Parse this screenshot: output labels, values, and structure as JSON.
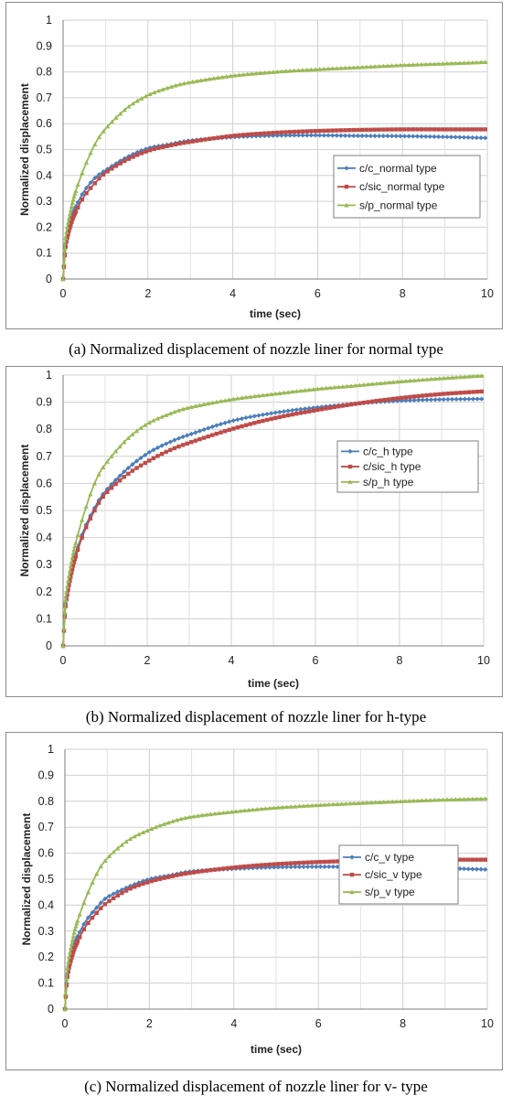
{
  "chart_data": [
    {
      "type": "line",
      "caption": "(a) Normalized displacement of nozzle liner for normal type",
      "xlabel": "time (sec)",
      "ylabel": "Normalized displacement",
      "xlim": [
        0,
        10
      ],
      "ylim": [
        0,
        1
      ],
      "xticks": [
        "0",
        "2",
        "4",
        "6",
        "8",
        "10"
      ],
      "yticks": [
        "0",
        "0.1",
        "0.2",
        "0.3",
        "0.4",
        "0.5",
        "0.6",
        "0.7",
        "0.8",
        "0.9",
        "1"
      ],
      "grid": true,
      "legend_position": "right",
      "series": [
        {
          "name": "c/c_normal type",
          "color": "#4a7ebb",
          "marker": "diamond",
          "x": [
            0,
            0.05,
            0.1,
            0.2,
            0.3,
            0.5,
            0.75,
            1,
            1.5,
            2,
            2.5,
            3,
            4,
            5,
            6,
            7,
            8,
            9,
            10
          ],
          "y": [
            0,
            0.12,
            0.18,
            0.24,
            0.28,
            0.34,
            0.39,
            0.42,
            0.47,
            0.505,
            0.52,
            0.535,
            0.548,
            0.554,
            0.555,
            0.553,
            0.552,
            0.549,
            0.545
          ]
        },
        {
          "name": "c/sic_normal type",
          "color": "#be4b48",
          "marker": "square",
          "x": [
            0,
            0.05,
            0.1,
            0.2,
            0.3,
            0.5,
            0.75,
            1,
            1.5,
            2,
            2.5,
            3,
            4,
            5,
            6,
            7,
            8,
            9,
            10
          ],
          "y": [
            0,
            0.11,
            0.16,
            0.22,
            0.26,
            0.32,
            0.37,
            0.41,
            0.46,
            0.495,
            0.515,
            0.53,
            0.553,
            0.565,
            0.572,
            0.576,
            0.578,
            0.578,
            0.578
          ]
        },
        {
          "name": "s/p_normal type",
          "color": "#98b954",
          "marker": "triangle",
          "x": [
            0,
            0.05,
            0.1,
            0.2,
            0.3,
            0.5,
            0.75,
            1,
            1.5,
            2,
            2.5,
            3,
            4,
            5,
            6,
            7,
            8,
            9,
            10
          ],
          "y": [
            0,
            0.14,
            0.2,
            0.28,
            0.34,
            0.43,
            0.52,
            0.58,
            0.66,
            0.71,
            0.74,
            0.76,
            0.785,
            0.8,
            0.81,
            0.818,
            0.826,
            0.832,
            0.838
          ]
        }
      ]
    },
    {
      "type": "line",
      "caption": "(b) Normalized displacement of nozzle liner for h-type",
      "xlabel": "time (sec)",
      "ylabel": "Normalized displacement",
      "xlim": [
        0,
        10
      ],
      "ylim": [
        0,
        1
      ],
      "xticks": [
        "0",
        "2",
        "4",
        "6",
        "8",
        "10"
      ],
      "yticks": [
        "0",
        "0.1",
        "0.2",
        "0.3",
        "0.4",
        "0.5",
        "0.6",
        "0.7",
        "0.8",
        "0.9",
        "1"
      ],
      "grid": true,
      "legend_position": "right",
      "series": [
        {
          "name": "c/c_h type",
          "color": "#4a7ebb",
          "marker": "diamond",
          "x": [
            0,
            0.05,
            0.1,
            0.2,
            0.3,
            0.5,
            0.75,
            1,
            1.5,
            2,
            2.5,
            3,
            4,
            5,
            6,
            7,
            8,
            9,
            10
          ],
          "y": [
            0,
            0.14,
            0.2,
            0.28,
            0.34,
            0.43,
            0.51,
            0.57,
            0.65,
            0.71,
            0.75,
            0.78,
            0.83,
            0.86,
            0.88,
            0.895,
            0.905,
            0.91,
            0.912
          ]
        },
        {
          "name": "c/sic_h type",
          "color": "#be4b48",
          "marker": "square",
          "x": [
            0,
            0.05,
            0.1,
            0.2,
            0.3,
            0.5,
            0.75,
            1,
            1.5,
            2,
            2.5,
            3,
            4,
            5,
            6,
            7,
            8,
            9,
            10
          ],
          "y": [
            0,
            0.13,
            0.19,
            0.27,
            0.33,
            0.42,
            0.5,
            0.56,
            0.63,
            0.68,
            0.72,
            0.75,
            0.8,
            0.84,
            0.87,
            0.895,
            0.915,
            0.93,
            0.94
          ]
        },
        {
          "name": "s/p_h type",
          "color": "#98b954",
          "marker": "triangle",
          "x": [
            0,
            0.05,
            0.1,
            0.2,
            0.3,
            0.5,
            0.75,
            1,
            1.5,
            2,
            2.5,
            3,
            4,
            5,
            6,
            7,
            8,
            9,
            10
          ],
          "y": [
            0,
            0.15,
            0.22,
            0.31,
            0.38,
            0.49,
            0.6,
            0.67,
            0.76,
            0.82,
            0.855,
            0.88,
            0.91,
            0.93,
            0.948,
            0.962,
            0.976,
            0.988,
            0.998
          ]
        }
      ]
    },
    {
      "type": "line",
      "caption": "(c) Normalized displacement of nozzle liner for v- type",
      "xlabel": "time (sec)",
      "ylabel": "Normalized displacement",
      "xlim": [
        0,
        10
      ],
      "ylim": [
        0,
        1
      ],
      "xticks": [
        "0",
        "2",
        "4",
        "6",
        "8",
        "10"
      ],
      "yticks": [
        "0",
        "0.1",
        "0.2",
        "0.3",
        "0.4",
        "0.5",
        "0.6",
        "0.7",
        "0.8",
        "0.9",
        "1"
      ],
      "grid": true,
      "legend_position": "right",
      "series": [
        {
          "name": "c/c_v type",
          "color": "#4a7ebb",
          "marker": "diamond",
          "x": [
            0,
            0.05,
            0.1,
            0.2,
            0.3,
            0.5,
            0.75,
            1,
            1.5,
            2,
            2.5,
            3,
            4,
            5,
            6,
            7,
            8,
            9,
            10
          ],
          "y": [
            0,
            0.12,
            0.18,
            0.24,
            0.28,
            0.34,
            0.39,
            0.43,
            0.47,
            0.5,
            0.515,
            0.53,
            0.54,
            0.546,
            0.548,
            0.547,
            0.545,
            0.542,
            0.537
          ]
        },
        {
          "name": "c/sic_v type",
          "color": "#be4b48",
          "marker": "square",
          "x": [
            0,
            0.05,
            0.1,
            0.2,
            0.3,
            0.5,
            0.75,
            1,
            1.5,
            2,
            2.5,
            3,
            4,
            5,
            6,
            7,
            8,
            9,
            10
          ],
          "y": [
            0,
            0.11,
            0.16,
            0.22,
            0.26,
            0.32,
            0.37,
            0.41,
            0.46,
            0.49,
            0.51,
            0.525,
            0.545,
            0.558,
            0.566,
            0.571,
            0.574,
            0.575,
            0.575
          ]
        },
        {
          "name": "s/p_v type",
          "color": "#98b954",
          "marker": "triangle",
          "x": [
            0,
            0.05,
            0.1,
            0.2,
            0.3,
            0.5,
            0.75,
            1,
            1.5,
            2,
            2.5,
            3,
            4,
            5,
            6,
            7,
            8,
            9,
            10
          ],
          "y": [
            0,
            0.14,
            0.2,
            0.28,
            0.34,
            0.43,
            0.52,
            0.58,
            0.65,
            0.69,
            0.72,
            0.74,
            0.76,
            0.775,
            0.785,
            0.793,
            0.8,
            0.806,
            0.81
          ]
        }
      ]
    }
  ]
}
